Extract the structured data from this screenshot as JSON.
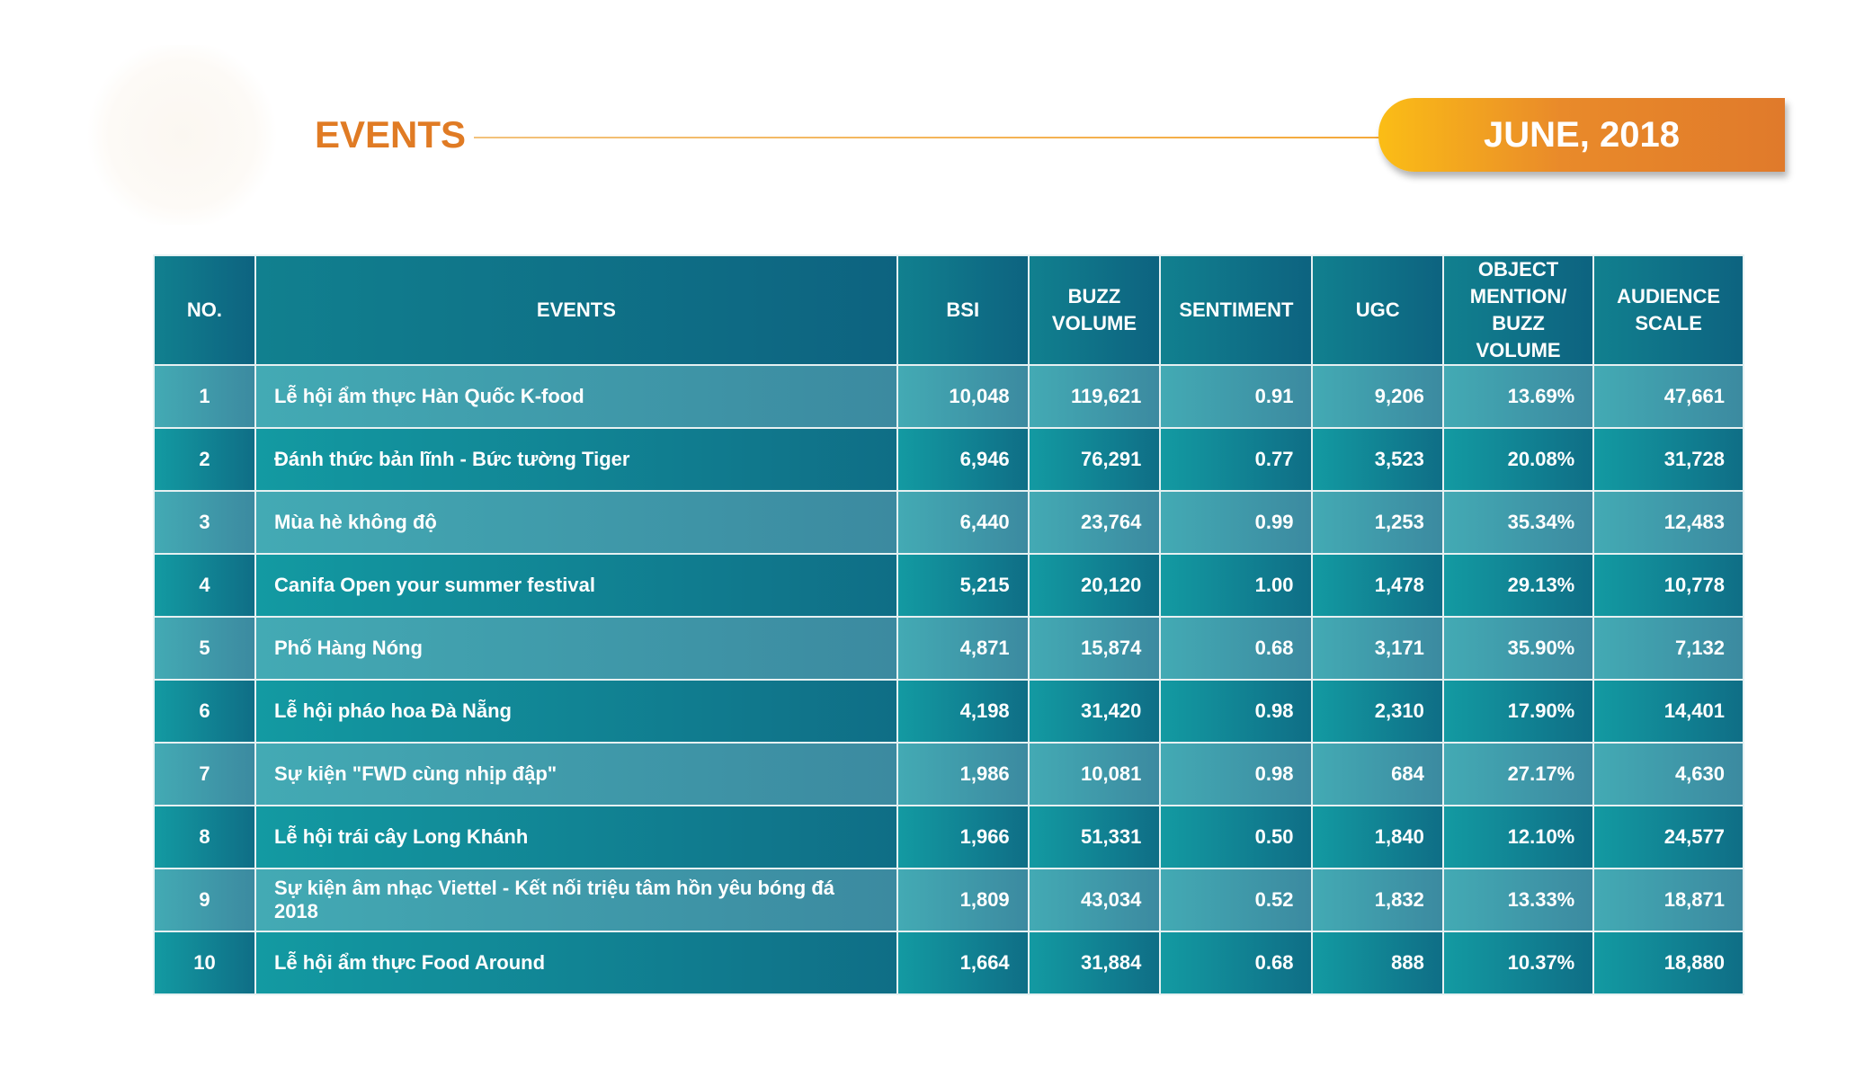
{
  "header": {
    "title": "EVENTS",
    "period": "JUNE, 2018"
  },
  "table": {
    "columns": [
      "NO.",
      "EVENTS",
      "BSI",
      "BUZZ VOLUME",
      "SENTIMENT",
      "UGC",
      "OBJECT MENTION/ BUZZ VOLUME",
      "AUDIENCE SCALE"
    ],
    "rows": [
      [
        "1",
        "Lễ hội ẩm thực Hàn Quốc K-food",
        "10,048",
        "119,621",
        "0.91",
        "9,206",
        "13.69%",
        "47,661"
      ],
      [
        "2",
        "Đánh thức bản lĩnh - Bức tường Tiger",
        "6,946",
        "76,291",
        "0.77",
        "3,523",
        "20.08%",
        "31,728"
      ],
      [
        "3",
        "Mùa hè không độ",
        "6,440",
        "23,764",
        "0.99",
        "1,253",
        "35.34%",
        "12,483"
      ],
      [
        "4",
        "Canifa Open your summer festival",
        "5,215",
        "20,120",
        "1.00",
        "1,478",
        "29.13%",
        "10,778"
      ],
      [
        "5",
        "Phố Hàng Nóng",
        "4,871",
        "15,874",
        "0.68",
        "3,171",
        "35.90%",
        "7,132"
      ],
      [
        "6",
        "Lễ hội pháo hoa Đà Nẵng",
        "4,198",
        "31,420",
        "0.98",
        "2,310",
        "17.90%",
        "14,401"
      ],
      [
        "7",
        "Sự kiện \"FWD cùng nhịp đập\"",
        "1,986",
        "10,081",
        "0.98",
        "684",
        "27.17%",
        "4,630"
      ],
      [
        "8",
        "Lễ hội trái cây Long Khánh",
        "1,966",
        "51,331",
        "0.50",
        "1,840",
        "12.10%",
        "24,577"
      ],
      [
        "9",
        "Sự kiện âm nhạc Viettel - Kết nối triệu tâm hồn yêu bóng đá 2018",
        "1,809",
        "43,034",
        "0.52",
        "1,832",
        "13.33%",
        "18,871"
      ],
      [
        "10",
        "Lễ hội ẩm thực Food Around",
        "1,664",
        "31,884",
        "0.68",
        "888",
        "10.37%",
        "18,880"
      ]
    ]
  }
}
